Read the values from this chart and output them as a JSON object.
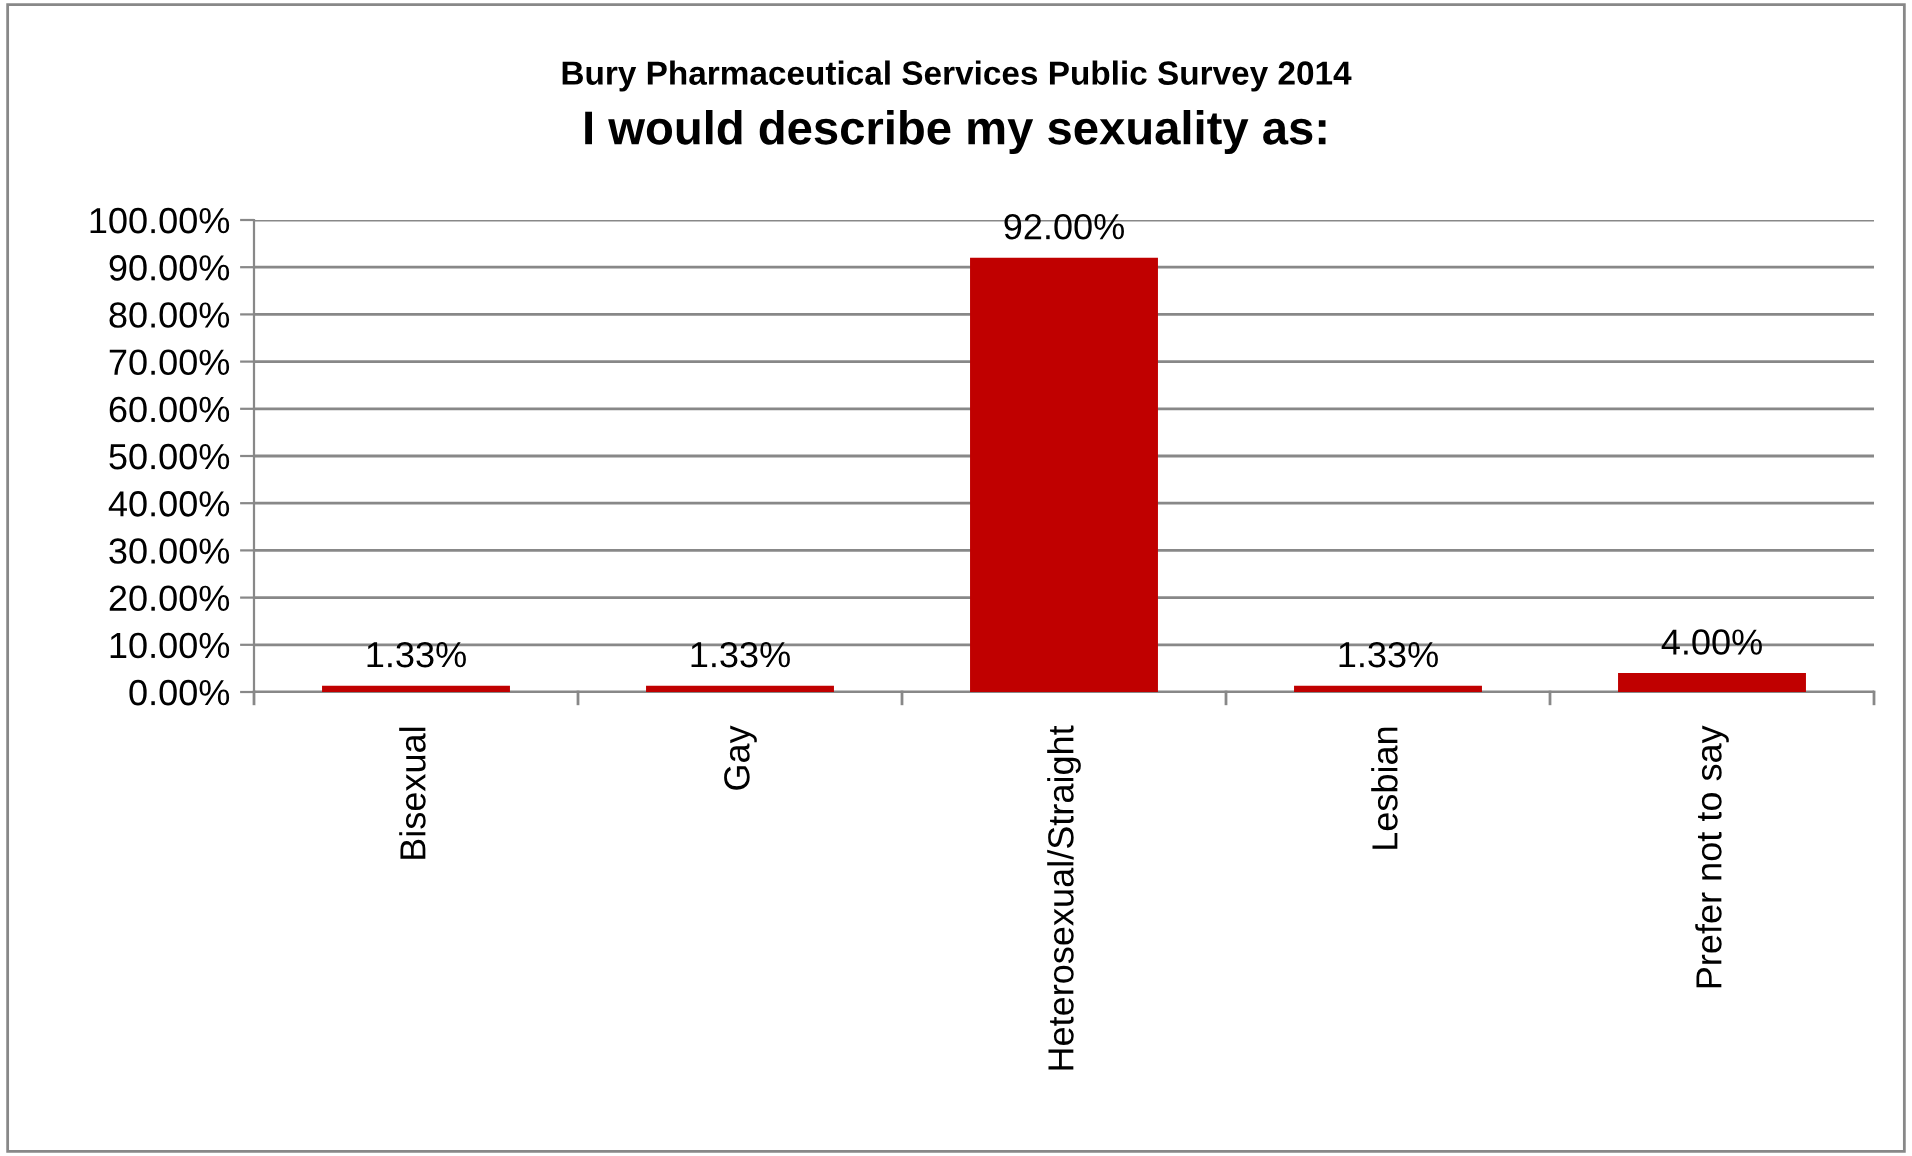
{
  "chart_data": {
    "type": "bar",
    "title": "Bury Pharmaceutical Services Public Survey 2014",
    "subtitle": "I would describe my sexuality as:",
    "categories": [
      "Bisexual",
      "Gay",
      "Heterosexual/Straight",
      "Lesbian",
      "Prefer not to say"
    ],
    "values": [
      1.33,
      1.33,
      92.0,
      1.33,
      4.0
    ],
    "color": "#c00000",
    "value_labels": [
      "1.33%",
      "1.33%",
      "92.00%",
      "1.33%",
      "4.00%"
    ],
    "ylim": [
      0,
      100
    ],
    "yticks": [
      {
        "value": 0,
        "label": "0.00%"
      },
      {
        "value": 10,
        "label": "10.00%"
      },
      {
        "value": 20,
        "label": "20.00%"
      },
      {
        "value": 30,
        "label": "30.00%"
      },
      {
        "value": 40,
        "label": "40.00%"
      },
      {
        "value": 50,
        "label": "50.00%"
      },
      {
        "value": 60,
        "label": "60.00%"
      },
      {
        "value": 70,
        "label": "70.00%"
      },
      {
        "value": 80,
        "label": "80.00%"
      },
      {
        "value": 90,
        "label": "90.00%"
      },
      {
        "value": 100,
        "label": "100.00%"
      }
    ],
    "grid": "y"
  }
}
